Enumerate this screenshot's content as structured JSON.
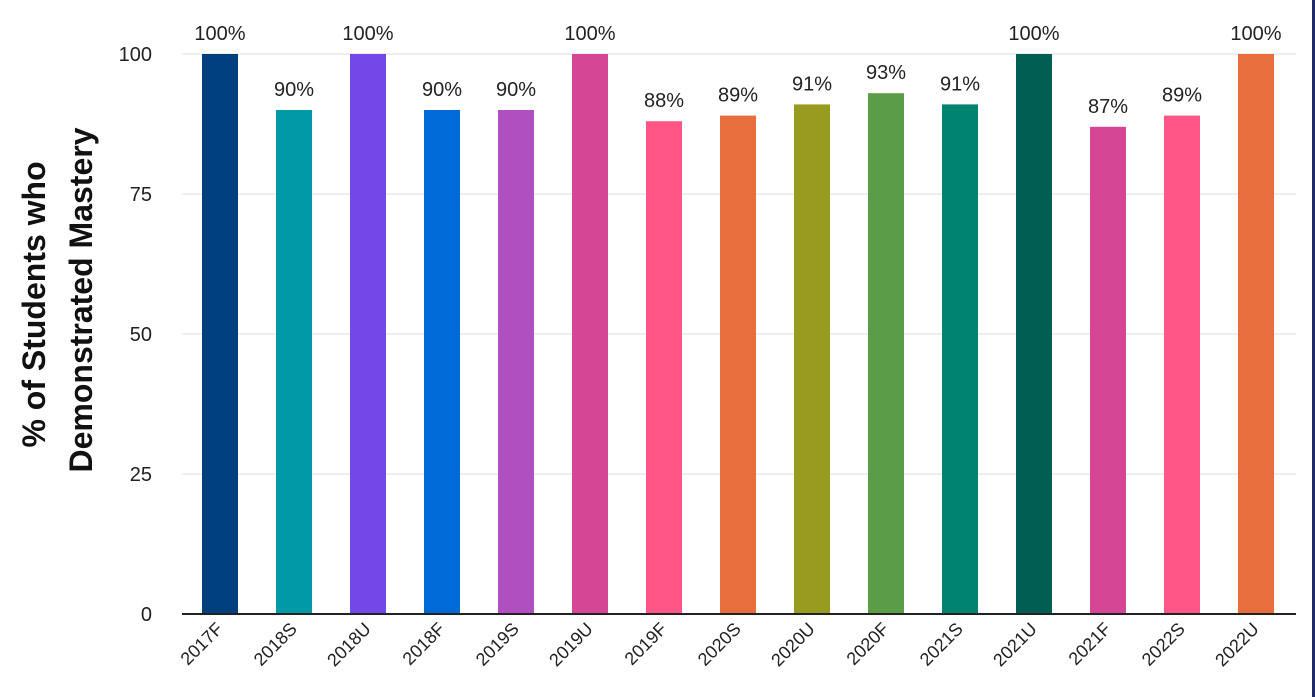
{
  "chart_data": {
    "type": "bar",
    "categories": [
      "2017F",
      "2018S",
      "2018U",
      "2018F",
      "2019S",
      "2019U",
      "2019F",
      "2020S",
      "2020U",
      "2020F",
      "2021S",
      "2021U",
      "2021F",
      "2022S",
      "2022U"
    ],
    "values": [
      100,
      90,
      100,
      90,
      90,
      100,
      88,
      89,
      91,
      93,
      91,
      100,
      87,
      89,
      100
    ],
    "data_labels": [
      "100%",
      "90%",
      "100%",
      "90%",
      "90%",
      "100%",
      "88%",
      "89%",
      "91%",
      "93%",
      "91%",
      "100%",
      "87%",
      "89%",
      "100%"
    ],
    "colors": [
      "#003f7d",
      "#0099a8",
      "#7348e6",
      "#006ad6",
      "#b04fc0",
      "#d54795",
      "#ff5687",
      "#e96e3d",
      "#989b20",
      "#5a9c47",
      "#00846f",
      "#005e53",
      "#d54795",
      "#ff5687",
      "#e96e3d"
    ],
    "title": "",
    "xlabel": "",
    "ylabel_lines": [
      "% of Students who",
      "Demonstrated Mastery"
    ],
    "ylim": [
      0,
      100
    ],
    "yticks": [
      "0",
      "25",
      "50",
      "75",
      "100"
    ],
    "grid": true,
    "legend": "none"
  }
}
